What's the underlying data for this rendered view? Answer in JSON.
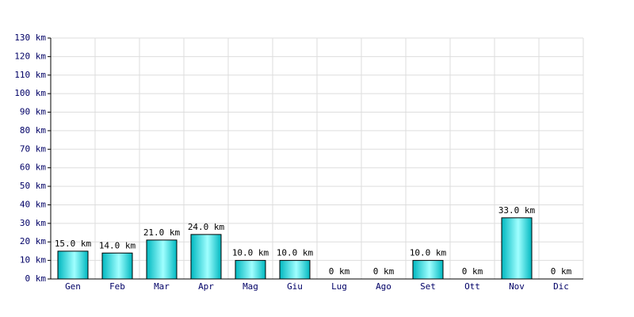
{
  "chart_data": {
    "type": "bar",
    "categories": [
      "Gen",
      "Feb",
      "Mar",
      "Apr",
      "Mag",
      "Giu",
      "Lug",
      "Ago",
      "Set",
      "Ott",
      "Nov",
      "Dic"
    ],
    "values": [
      15,
      14,
      21,
      24,
      10,
      10,
      0,
      0,
      10,
      0,
      33,
      0
    ],
    "value_labels": [
      "15.0 km",
      "14.0 km",
      "21.0 km",
      "24.0 km",
      "10.0 km",
      "10.0 km",
      "0 km",
      "0 km",
      "10.0 km",
      "0 km",
      "33.0 km",
      "0 km"
    ],
    "color": "#00b8c0",
    "ylim": [
      0,
      130
    ],
    "yticks": [
      {
        "value": 0,
        "label": "0 km"
      },
      {
        "value": 10,
        "label": "10 km"
      },
      {
        "value": 20,
        "label": "20 km"
      },
      {
        "value": 30,
        "label": "30 km"
      },
      {
        "value": 40,
        "label": "40 km"
      },
      {
        "value": 50,
        "label": "50 km"
      },
      {
        "value": 60,
        "label": "60 km"
      },
      {
        "value": 70,
        "label": "70 km"
      },
      {
        "value": 80,
        "label": "80 km"
      },
      {
        "value": 90,
        "label": "90 km"
      },
      {
        "value": 100,
        "label": "100 km"
      },
      {
        "value": 110,
        "label": "110 km"
      },
      {
        "value": 120,
        "label": "120 km"
      },
      {
        "value": 130,
        "label": "130 km"
      }
    ],
    "grid": true
  }
}
